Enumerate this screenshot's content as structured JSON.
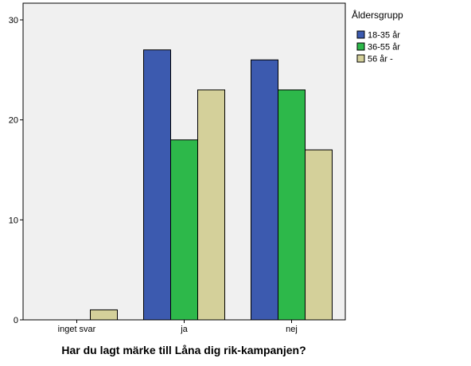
{
  "chart_data": {
    "type": "bar",
    "title": "",
    "xlabel": "Har du lagt märke till Låna dig rik-kampanjen?",
    "ylabel": "",
    "categories": [
      "inget svar",
      "ja",
      "nej"
    ],
    "ylim": [
      0,
      30
    ],
    "yticks": [
      0,
      10,
      20,
      30
    ],
    "grid": false,
    "legend_title": "Åldersgrupp",
    "legend_position": "right",
    "plot_background": "#f0f0f0",
    "series": [
      {
        "name": "18-35 år",
        "color": "#3c5aaf",
        "values": [
          0,
          27,
          26
        ]
      },
      {
        "name": "36-55 år",
        "color": "#2db84a",
        "values": [
          0,
          18,
          23
        ]
      },
      {
        "name": "56 år -",
        "color": "#d4d09a",
        "values": [
          1,
          23,
          17
        ]
      }
    ]
  }
}
